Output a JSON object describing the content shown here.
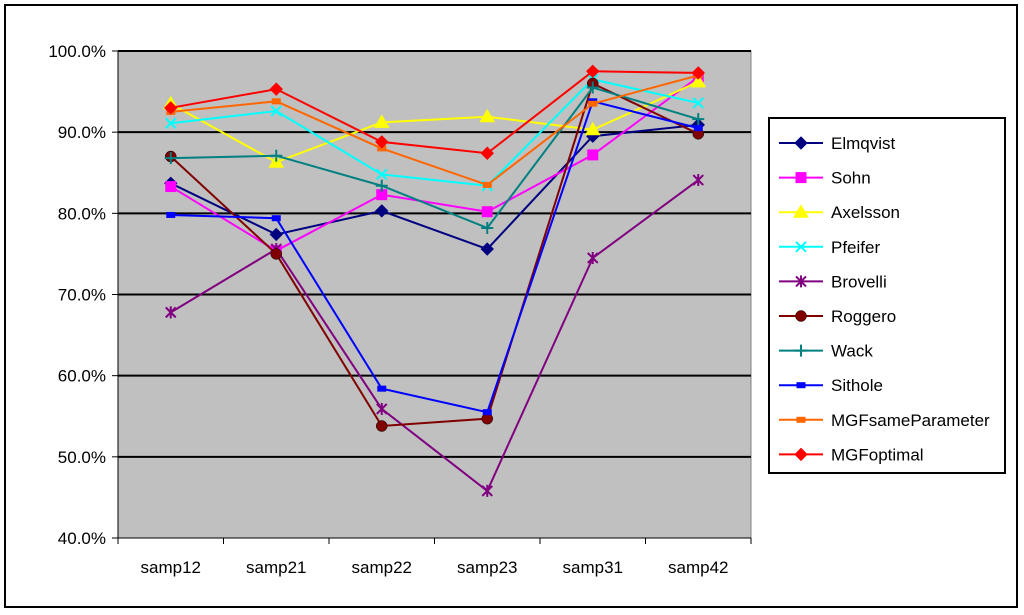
{
  "chart_data": {
    "type": "line",
    "title": "",
    "xlabel": "",
    "ylabel": "",
    "categories": [
      "samp12",
      "samp21",
      "samp22",
      "samp23",
      "samp31",
      "samp42"
    ],
    "ylim": [
      0.4,
      1.0
    ],
    "yticks": [
      0.4,
      0.5,
      0.6,
      0.7,
      0.8,
      0.9,
      1.0
    ],
    "ytick_labels": [
      "40.0%",
      "50.0%",
      "60.0%",
      "70.0%",
      "80.0%",
      "90.0%",
      "100.0%"
    ],
    "plot_background": "#c0c0c0",
    "gridlines": "horizontal",
    "legend_position": "right",
    "series": [
      {
        "name": "Elmqvist",
        "color": "#000080",
        "marker": "diamond",
        "values": [
          0.837,
          0.774,
          0.803,
          0.756,
          0.895,
          0.909
        ]
      },
      {
        "name": "Sohn",
        "color": "#ff00ff",
        "marker": "square",
        "values": [
          0.833,
          0.754,
          0.823,
          0.802,
          0.872,
          0.968
        ]
      },
      {
        "name": "Axelsson",
        "color": "#ffff00",
        "marker": "triangle",
        "values": [
          0.935,
          0.863,
          0.912,
          0.919,
          0.903,
          0.962
        ]
      },
      {
        "name": "Pfeifer",
        "color": "#00ffff",
        "marker": "x",
        "values": [
          0.911,
          0.926,
          0.848,
          0.834,
          0.965,
          0.936
        ]
      },
      {
        "name": "Brovelli",
        "color": "#800080",
        "marker": "star",
        "values": [
          0.678,
          0.756,
          0.559,
          0.458,
          0.745,
          0.841
        ]
      },
      {
        "name": "Roggero",
        "color": "#800000",
        "marker": "circle",
        "values": [
          0.87,
          0.75,
          0.538,
          0.547,
          0.96,
          0.898
        ]
      },
      {
        "name": "Wack",
        "color": "#008080",
        "marker": "plus",
        "values": [
          0.868,
          0.871,
          0.834,
          0.782,
          0.955,
          0.916
        ]
      },
      {
        "name": "Sithole",
        "color": "#0000ff",
        "marker": "dash",
        "values": [
          0.798,
          0.794,
          0.584,
          0.555,
          0.938,
          0.905
        ]
      },
      {
        "name": "MGFsameParameter",
        "color": "#ff6600",
        "marker": "dash",
        "values": [
          0.925,
          0.938,
          0.88,
          0.835,
          0.935,
          0.97
        ]
      },
      {
        "name": "MGFoptimal",
        "color": "#ff0000",
        "marker": "diamond",
        "values": [
          0.93,
          0.953,
          0.888,
          0.874,
          0.975,
          0.973
        ]
      }
    ]
  }
}
